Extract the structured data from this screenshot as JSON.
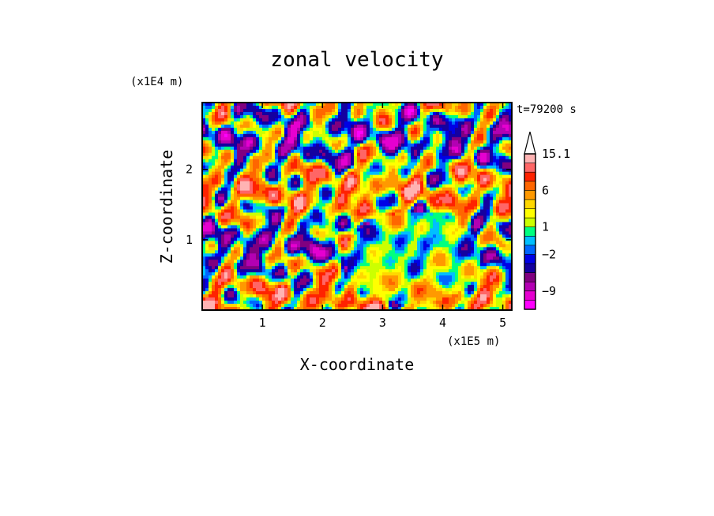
{
  "chart_data": {
    "type": "heatmap",
    "title": "zonal velocity",
    "xlabel": "X-coordinate",
    "ylabel": "Z-coordinate",
    "x_scale_label": "(x1E5 m)",
    "y_scale_label": "(x1E4 m)",
    "time_label": "t=79200 s",
    "xlim": [
      0,
      5.15
    ],
    "ylim": [
      0,
      2.95
    ],
    "xticks": [
      1,
      2,
      3,
      4,
      5
    ],
    "yticks": [
      1,
      2
    ],
    "xtick_labels": [
      "1",
      "2",
      "3",
      "4",
      "5"
    ],
    "ytick_labels": [
      "1",
      "2"
    ],
    "grid": false,
    "colorbar": {
      "levels": [
        -15,
        -12,
        -9,
        -7,
        -5,
        -3,
        -2,
        -1,
        0,
        1,
        2,
        3,
        4,
        6,
        8,
        10,
        12.5,
        15.1
      ],
      "colors": [
        "#ff00ff",
        "#e600d0",
        "#b300b3",
        "#800080",
        "#1400a0",
        "#0000e6",
        "#0066ff",
        "#00bfff",
        "#00ff80",
        "#ccff00",
        "#ffff00",
        "#ffd700",
        "#ff9900",
        "#ff6600",
        "#ff2200",
        "#ff6666",
        "#ffb3b3"
      ],
      "labeled_levels": [
        "15.1",
        "6",
        "1",
        "−2",
        "−9"
      ],
      "extend": "max",
      "extend_color": "#ffffff"
    },
    "field_description_values": {
      "dominant_range": [
        -9,
        15.1
      ],
      "notes": "Turbulent 2-D field of zonal velocity; alternating positive (orange/red) and negative (blue) elongated cells."
    }
  }
}
